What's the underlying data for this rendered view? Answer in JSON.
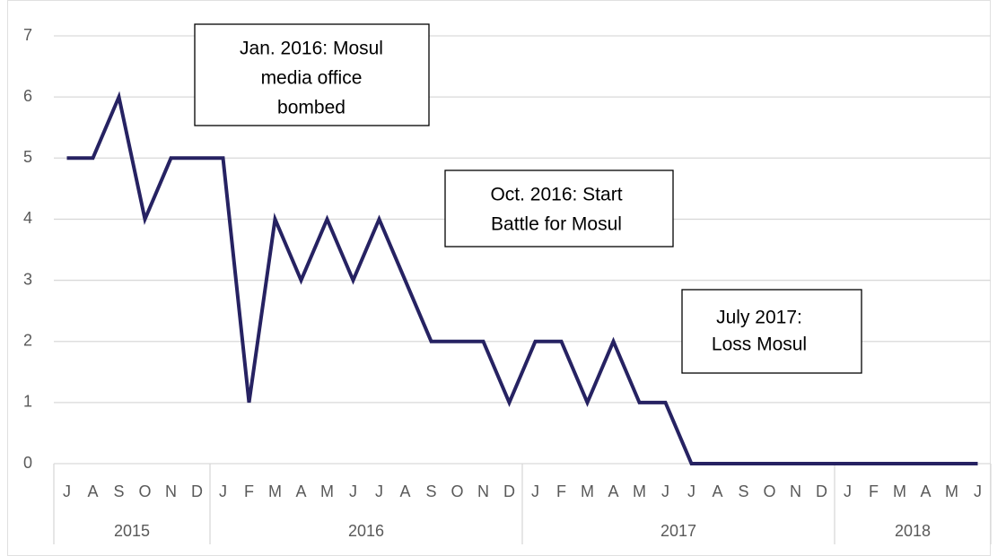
{
  "chart_data": {
    "type": "line",
    "categories": [
      "J",
      "A",
      "S",
      "O",
      "N",
      "D",
      "J",
      "F",
      "M",
      "A",
      "M",
      "J",
      "J",
      "A",
      "S",
      "O",
      "N",
      "D",
      "J",
      "F",
      "M",
      "A",
      "M",
      "J",
      "J",
      "A",
      "S",
      "O",
      "N",
      "D",
      "J",
      "F",
      "M",
      "A",
      "M",
      "J"
    ],
    "year_groups": [
      {
        "label": "2015",
        "size": 6
      },
      {
        "label": "2016",
        "size": 12
      },
      {
        "label": "2017",
        "size": 12
      },
      {
        "label": "2018",
        "size": 6
      }
    ],
    "series": [
      {
        "color": "#262262",
        "values": [
          5,
          5,
          6,
          4,
          5,
          5,
          5,
          1,
          4,
          3,
          4,
          3,
          4,
          3,
          2,
          2,
          2,
          1,
          2,
          2,
          1,
          2,
          1,
          1,
          0,
          0,
          0,
          0,
          0,
          0,
          0,
          0,
          0,
          0,
          0,
          0
        ]
      }
    ],
    "ylim": [
      0,
      7
    ],
    "yticks": [
      0,
      1,
      2,
      3,
      4,
      5,
      6,
      7
    ],
    "grid": true,
    "annotations": [
      {
        "lines": [
          "Jan. 2016: Mosul",
          "media office",
          "bombed"
        ]
      },
      {
        "lines": [
          "Oct. 2016: Start",
          "Battle for Mosul"
        ]
      },
      {
        "lines": [
          "July 2017:",
          "Loss Mosul"
        ]
      }
    ]
  }
}
